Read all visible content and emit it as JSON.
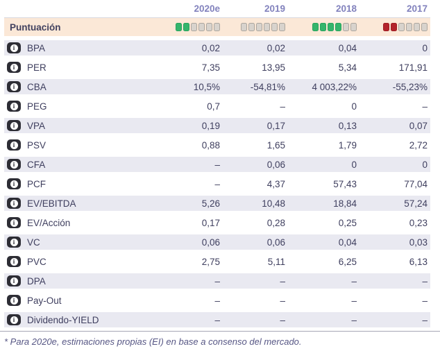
{
  "header": {
    "years": [
      "2020e",
      "2019",
      "2018",
      "2017"
    ]
  },
  "score_row": {
    "label": "Puntuación",
    "max": 6,
    "groups": [
      {
        "year": "2020e",
        "filled": 2,
        "total": 6,
        "color": "green"
      },
      {
        "year": "2019",
        "filled": 0,
        "total": 6,
        "color": "empty"
      },
      {
        "year": "2018",
        "filled": 4,
        "total": 6,
        "color": "green"
      },
      {
        "year": "2017",
        "filled": 2,
        "total": 6,
        "color": "red"
      }
    ]
  },
  "rows": [
    {
      "label": "BPA",
      "values": [
        "0,02",
        "0,02",
        "0,04",
        "0"
      ]
    },
    {
      "label": "PER",
      "values": [
        "7,35",
        "13,95",
        "5,34",
        "171,91"
      ]
    },
    {
      "label": "CBA",
      "values": [
        "10,5%",
        "-54,81%",
        "4 003,22%",
        "-55,23%"
      ]
    },
    {
      "label": "PEG",
      "values": [
        "0,7",
        "–",
        "0",
        "–"
      ]
    },
    {
      "label": "VPA",
      "values": [
        "0,19",
        "0,17",
        "0,13",
        "0,07"
      ]
    },
    {
      "label": "PSV",
      "values": [
        "0,88",
        "1,65",
        "1,79",
        "2,72"
      ]
    },
    {
      "label": "CFA",
      "values": [
        "–",
        "0,06",
        "0",
        "0"
      ]
    },
    {
      "label": "PCF",
      "values": [
        "–",
        "4,37",
        "57,43",
        "77,04"
      ]
    },
    {
      "label": "EV/EBITDA",
      "values": [
        "5,26",
        "10,48",
        "18,84",
        "57,24"
      ]
    },
    {
      "label": "EV/Acción",
      "values": [
        "0,17",
        "0,28",
        "0,25",
        "0,23"
      ]
    },
    {
      "label": "VC",
      "values": [
        "0,06",
        "0,06",
        "0,04",
        "0,03"
      ]
    },
    {
      "label": "PVC",
      "values": [
        "2,75",
        "5,11",
        "6,25",
        "6,13"
      ]
    },
    {
      "label": "DPA",
      "values": [
        "–",
        "–",
        "–",
        "–"
      ]
    },
    {
      "label": "Pay-Out",
      "values": [
        "–",
        "–",
        "–",
        "–"
      ]
    },
    {
      "label": "Dividendo-YIELD",
      "values": [
        "–",
        "–",
        "–",
        "–"
      ]
    }
  ],
  "icons": {
    "info_glyph": "i"
  },
  "footnote": "* Para 2020e, estimaciones propias (EI) en base a consenso del mercado.",
  "colors": {
    "score_green": "#34b56c",
    "score_red": "#b3232b",
    "score_empty": "#d8d3cd",
    "score_row_bg": "#fbe8d7",
    "alt_row_bg": "#e9e9f1",
    "header_year_text": "#8282bd",
    "body_text": "#3e3e5e",
    "info_badge_bg": "#2d2d35",
    "footnote_text": "#565684"
  }
}
